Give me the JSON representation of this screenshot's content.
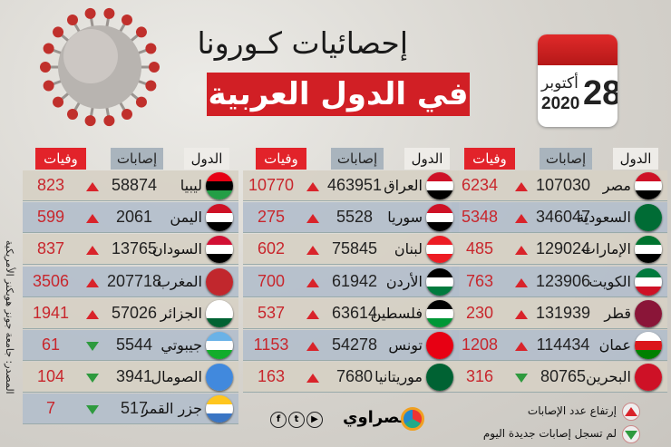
{
  "header": {
    "title": "إحصائيات كـورونا",
    "subtitle": "في الدول العربية"
  },
  "calendar": {
    "day": "28",
    "month": "أكتوبر",
    "year": "2020"
  },
  "columns": {
    "deaths": "وفيات",
    "cases": "إصابات",
    "country": "الدول"
  },
  "source": "المصدر: جامعة جونز هوبكنز الأمريكية",
  "brand": {
    "name": "مصراوي",
    "social": [
      "facebook-icon",
      "twitter-icon",
      "youtube-icon"
    ]
  },
  "legend": {
    "up": "إرتفاع عدد الإصابات",
    "down": "لم تسجل إصابات جديدة اليوم"
  },
  "colors": {
    "accent": "#d11f25",
    "up": "#d9232a",
    "down": "#2e9a3e"
  },
  "groups": [
    {
      "rows": [
        {
          "country": "مصر",
          "cases": "107030",
          "deaths": "6234",
          "trend": "up",
          "flag": [
            "#ce1126",
            "#ffffff",
            "#000000"
          ]
        },
        {
          "country": "السعودية",
          "cases": "346047",
          "deaths": "5348",
          "trend": "up",
          "flag": [
            "#006c35",
            "#006c35",
            "#006c35"
          ]
        },
        {
          "country": "الإمارات",
          "cases": "129024",
          "deaths": "485",
          "trend": "up",
          "flag": [
            "#00732f",
            "#ffffff",
            "#000000"
          ]
        },
        {
          "country": "الكويت",
          "cases": "123906",
          "deaths": "763",
          "trend": "up",
          "flag": [
            "#007a3d",
            "#ffffff",
            "#ce1126"
          ]
        },
        {
          "country": "قطر",
          "cases": "131939",
          "deaths": "230",
          "trend": "up",
          "flag": [
            "#8a1538",
            "#8a1538",
            "#8a1538"
          ]
        },
        {
          "country": "عمان",
          "cases": "114434",
          "deaths": "1208",
          "trend": "up",
          "flag": [
            "#ffffff",
            "#db161b",
            "#008000"
          ]
        },
        {
          "country": "البحرين",
          "cases": "80765",
          "deaths": "316",
          "trend": "down",
          "flag": [
            "#ce1126",
            "#ce1126",
            "#ce1126"
          ]
        }
      ]
    },
    {
      "rows": [
        {
          "country": "العراق",
          "cases": "463951",
          "deaths": "10770",
          "trend": "up",
          "flag": [
            "#ce1126",
            "#ffffff",
            "#000000"
          ]
        },
        {
          "country": "سوريا",
          "cases": "5528",
          "deaths": "275",
          "trend": "up",
          "flag": [
            "#ce1126",
            "#ffffff",
            "#000000"
          ]
        },
        {
          "country": "لبنان",
          "cases": "75845",
          "deaths": "602",
          "trend": "up",
          "flag": [
            "#ed1c24",
            "#ffffff",
            "#ed1c24"
          ]
        },
        {
          "country": "الأردن",
          "cases": "61942",
          "deaths": "700",
          "trend": "up",
          "flag": [
            "#000000",
            "#ffffff",
            "#007a3d"
          ]
        },
        {
          "country": "فلسطين",
          "cases": "63614",
          "deaths": "537",
          "trend": "up",
          "flag": [
            "#000000",
            "#ffffff",
            "#009736"
          ]
        },
        {
          "country": "تونس",
          "cases": "54278",
          "deaths": "1153",
          "trend": "up",
          "flag": [
            "#e70013",
            "#e70013",
            "#e70013"
          ]
        },
        {
          "country": "موريتانيا",
          "cases": "7680",
          "deaths": "163",
          "trend": "up",
          "flag": [
            "#006233",
            "#006233",
            "#006233"
          ]
        }
      ]
    },
    {
      "rows": [
        {
          "country": "ليبيا",
          "cases": "58874",
          "deaths": "823",
          "trend": "up",
          "flag": [
            "#e70013",
            "#000000",
            "#239e46"
          ]
        },
        {
          "country": "اليمن",
          "cases": "2061",
          "deaths": "599",
          "trend": "up",
          "flag": [
            "#ce1126",
            "#ffffff",
            "#000000"
          ]
        },
        {
          "country": "السودان",
          "cases": "13765",
          "deaths": "837",
          "trend": "up",
          "flag": [
            "#d21034",
            "#ffffff",
            "#000000"
          ]
        },
        {
          "country": "المغرب",
          "cases": "207718",
          "deaths": "3506",
          "trend": "up",
          "flag": [
            "#c1272d",
            "#c1272d",
            "#c1272d"
          ]
        },
        {
          "country": "الجزائر",
          "cases": "57026",
          "deaths": "1941",
          "trend": "up",
          "flag": [
            "#ffffff",
            "#ffffff",
            "#006233"
          ]
        },
        {
          "country": "جيبوتي",
          "cases": "5544",
          "deaths": "61",
          "trend": "down",
          "flag": [
            "#6ab2e7",
            "#ffffff",
            "#12ad2b"
          ]
        },
        {
          "country": "الصومال",
          "cases": "3941",
          "deaths": "104",
          "trend": "down",
          "flag": [
            "#4189dd",
            "#4189dd",
            "#4189dd"
          ]
        },
        {
          "country": "جزر القمر",
          "cases": "517",
          "deaths": "7",
          "trend": "down",
          "flag": [
            "#ffc61e",
            "#ffffff",
            "#3a75c4"
          ]
        }
      ]
    }
  ]
}
